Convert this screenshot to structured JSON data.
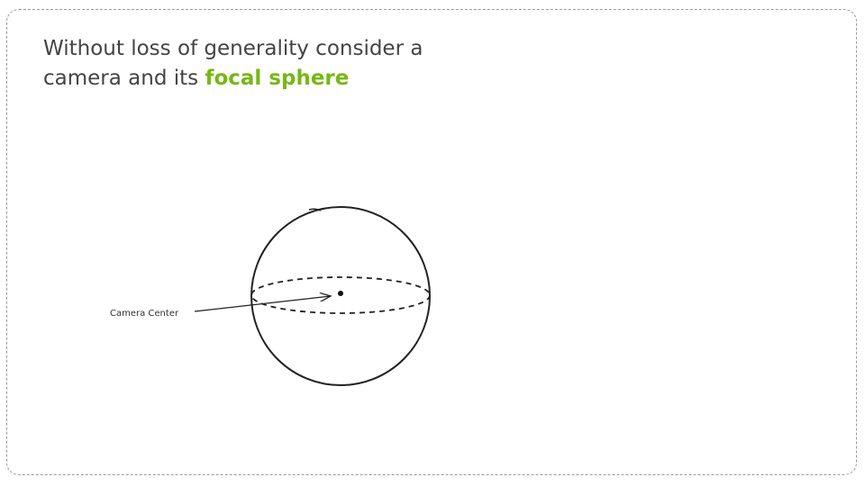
{
  "caption": {
    "line1": "Without loss of generality consider a",
    "line2_prefix": "camera and its ",
    "highlight": "focal sphere"
  },
  "diagram": {
    "center_label": "Camera Center"
  },
  "colors": {
    "highlight": "#77b814",
    "text": "#444444",
    "stroke": "#222222",
    "frame_border": "#9a9a9a"
  }
}
